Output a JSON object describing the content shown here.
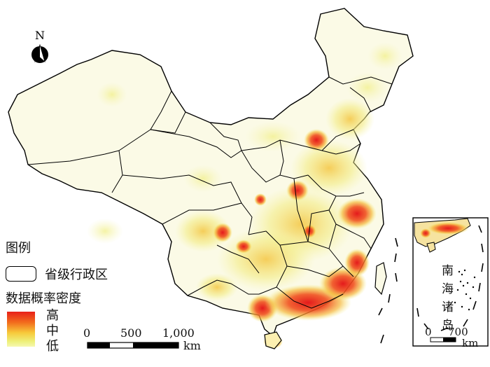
{
  "north_arrow": {
    "label": "N"
  },
  "legend": {
    "title": "图例",
    "boundary_label": "省级行政区",
    "density_title": "数据概率密度",
    "levels": [
      "高",
      "中",
      "低"
    ],
    "colors": {
      "high": "#e8201a",
      "mid": "#f5a623",
      "low": "#eef07a"
    }
  },
  "scale_bar": {
    "ticks": [
      "0",
      "500",
      "1,000"
    ],
    "unit": "km"
  },
  "inset": {
    "name_chars": [
      "南",
      "海",
      "诸",
      "岛"
    ],
    "scale_ticks": [
      "0",
      "700"
    ],
    "unit": "km"
  }
}
